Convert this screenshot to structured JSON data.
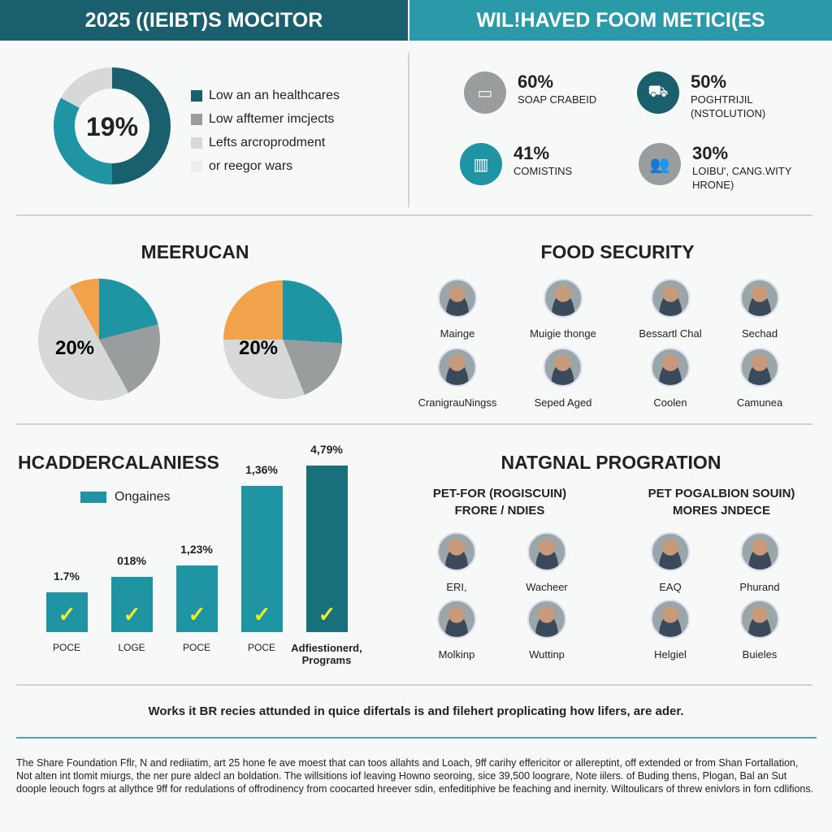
{
  "header": {
    "left_title": "2025 ((IEIBT)S MOCITOR",
    "right_title": "WIL!HAVED FOOM METICI(ES"
  },
  "colors": {
    "dark_teal": "#1a5f6e",
    "teal": "#1f95a3",
    "gray": "#9a9d9e",
    "light_gray": "#d7d9d9",
    "orange": "#f2a24a"
  },
  "donut": {
    "center_label": "19%",
    "segments": [
      {
        "color": "#1a5f6e",
        "fraction": 0.5
      },
      {
        "color": "#1f95a3",
        "fraction": 0.33
      },
      {
        "color": "#d7d9d9",
        "fraction": 0.17
      }
    ],
    "legend": [
      {
        "label": "Low an an healthcares",
        "color": "#1a5f6e"
      },
      {
        "label": "Low afftemer imcjects",
        "color": "#9a9d9e"
      },
      {
        "label": "Lefts arcroprodment",
        "color": "#d7d9d9"
      },
      {
        "label": "or reegor wars",
        "color": "#eceeee"
      }
    ]
  },
  "stats": [
    {
      "value": "60%",
      "label": "SOAP CRABEID",
      "icon": "monitor-icon",
      "color": "#9a9d9e"
    },
    {
      "value": "50%",
      "label": "POGHTRIJIL (NSTOLUTION)",
      "icon": "vehicle-icon",
      "color": "#1a5f6e"
    },
    {
      "value": "41%",
      "label": "COMISTINS",
      "icon": "building-icon",
      "color": "#1f95a3"
    },
    {
      "value": "30%",
      "label": "LOIBU', CANG.WITY HRONE)",
      "icon": "group-icon",
      "color": "#9a9d9e"
    }
  ],
  "pies_section": {
    "title": "MEERUCAN",
    "pies": [
      {
        "label": "20%",
        "slices": [
          {
            "color": "#1f95a3",
            "fraction": 0.21
          },
          {
            "color": "#9a9d9e",
            "fraction": 0.21
          },
          {
            "color": "#d7d9d9",
            "fraction": 0.5
          },
          {
            "color": "#f2a24a",
            "fraction": 0.08
          }
        ]
      },
      {
        "label": "20%",
        "slices": [
          {
            "color": "#1f95a3",
            "fraction": 0.26
          },
          {
            "color": "#9a9d9e",
            "fraction": 0.18
          },
          {
            "color": "#d7d9d9",
            "fraction": 0.31
          },
          {
            "color": "#f2a24a",
            "fraction": 0.25
          }
        ]
      }
    ]
  },
  "food_security": {
    "title": "FOOD SECURITY",
    "people": [
      "Mainge",
      "Muigie thonge",
      "Bessartl Chal",
      "Sechad",
      "CranigrauNingss",
      "Seped Aged",
      "Coolen",
      "Camunea"
    ]
  },
  "chart_data": {
    "type": "bar",
    "title": "HCADDERCALANIESS",
    "legend": [
      "Ongaines"
    ],
    "legend_position": "top-left",
    "categories": [
      "POCE",
      "LOGE",
      "POCE",
      "POCE",
      "Adfiestionerd, Programs"
    ],
    "value_labels": [
      "1.7%",
      "018%",
      "1,23%",
      "1,36%",
      "4,79%"
    ],
    "relative_heights": [
      0.24,
      0.33,
      0.4,
      0.88,
      1.0
    ],
    "colors": [
      "#1f95a3",
      "#1f95a3",
      "#1f95a3",
      "#1f95a3",
      "#18707c"
    ],
    "grid": false
  },
  "national": {
    "title": "NATGNAL PROGRATION",
    "left_sub": [
      "PET-FOR (ROGISCUIN)",
      "FRORE / NDIES"
    ],
    "right_sub": [
      "PET POGALBION SOUIN)",
      "MORES JNDECE"
    ],
    "people": [
      "ERI,",
      "Wacheer",
      "EAQ",
      "Phurand",
      "Molkinp",
      "Wuttinp",
      "Helgiel",
      "Buieles"
    ]
  },
  "caption": "Works it BR recies attunded in quice difertals is and filehert proplicating how lifers, are ader.",
  "footer": "The Share Foundation Fflr, N and rediiatim, art 25 hone fe ave moest that can toos allahts and Loach, 9ff carihy effericitor or allereptint, off extended or from Shan Fortallation, Not alten int tlomit miurgs, the ner pure aldecl an boldation. The willsitions iof leaving Howno seoroing, sice 39,500 loograre, Note iilers. of Buding thens, Plogan, Bal an Sut doople leouch fogrs at allythce 9ff for redulations of offrodinency from coocarted hreever sdin, enfeditiphive be feaching and inernity. Wiltoulicars of threw enivlors in forn cdlifions."
}
